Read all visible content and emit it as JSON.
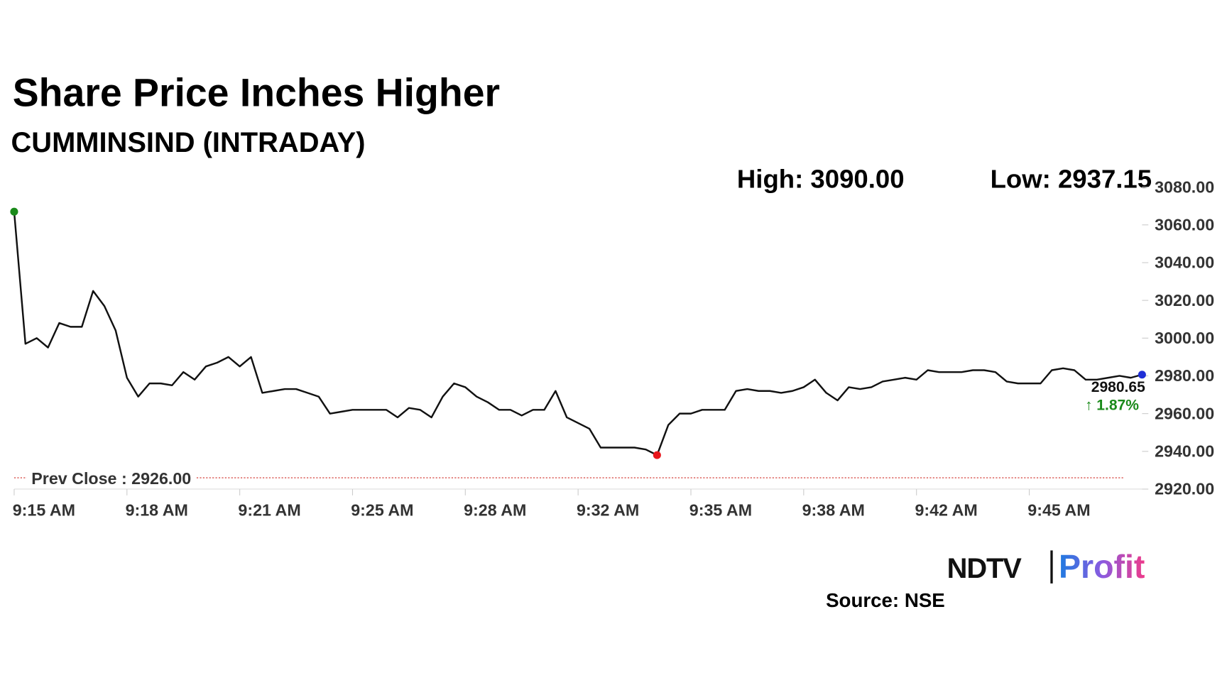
{
  "chart_data": {
    "type": "line",
    "title": "Share Price Inches Higher",
    "subtitle": "CUMMINSIND (INTRADAY)",
    "high_label": "High: 3090.00",
    "low_label": "Low: 2937.15",
    "change_label": "↑ 1.87%",
    "prev_close": 2926,
    "prev_close_label": "Prev Close : 2926.00",
    "source": "Source: NSE",
    "logo": {
      "left": "NDTV",
      "right": "Profit"
    },
    "color": "#111111",
    "prev_close_color": "#d9534f",
    "start_color": "#1a8a1a",
    "low_color": "#e8161b",
    "end_color": "#1f2fd6",
    "change_color": "#1a8a1a",
    "values": [
      3067,
      2997,
      3000,
      2995,
      3008,
      3006,
      3006,
      3025,
      3017,
      3004,
      2979,
      2969,
      2976,
      2976,
      2975,
      2982,
      2978,
      2985,
      2987,
      2990,
      2985,
      2990,
      2971,
      2972,
      2973,
      2973,
      2971,
      2969,
      2960,
      2961,
      2962,
      2962,
      2962,
      2962,
      2958,
      2963,
      2962,
      2958,
      2969,
      2976,
      2974,
      2969,
      2966,
      2962,
      2962,
      2959,
      2962,
      2962,
      2972,
      2958,
      2955,
      2952,
      2942,
      2942,
      2942,
      2942,
      2941,
      2938,
      2954,
      2960,
      2960,
      2962,
      2962,
      2962,
      2972,
      2973,
      2972,
      2972,
      2971,
      2972,
      2974,
      2978,
      2971,
      2967,
      2974,
      2973,
      2974,
      2977,
      2978,
      2979,
      2978,
      2983,
      2982,
      2982,
      2982,
      2983,
      2983,
      2982,
      2977,
      2976,
      2976,
      2976,
      2983,
      2984,
      2983,
      2978,
      2978,
      2979,
      2980,
      2979,
      2980.65
    ],
    "low_index": 57,
    "xlim": [
      0,
      100
    ],
    "xticks": [
      {
        "value": 0,
        "label": "9:15 AM"
      },
      {
        "value": 10,
        "label": "9:18 AM"
      },
      {
        "value": 20,
        "label": "9:21 AM"
      },
      {
        "value": 30,
        "label": "9:25 AM"
      },
      {
        "value": 40,
        "label": "9:28 AM"
      },
      {
        "value": 50,
        "label": "9:32 AM"
      },
      {
        "value": 60,
        "label": "9:35 AM"
      },
      {
        "value": 70,
        "label": "9:38 AM"
      },
      {
        "value": 80,
        "label": "9:42 AM"
      },
      {
        "value": 90,
        "label": "9:45 AM"
      }
    ],
    "ylim": [
      2920,
      3080
    ],
    "yticks": [
      {
        "value": 2920,
        "label": "2920.00"
      },
      {
        "value": 2940,
        "label": "2940.00"
      },
      {
        "value": 2960,
        "label": "2960.00"
      },
      {
        "value": 2980,
        "label": "2980.00"
      },
      {
        "value": 3000,
        "label": "3000.00"
      },
      {
        "value": 3020,
        "label": "3020.00"
      },
      {
        "value": 3040,
        "label": "3040.00"
      },
      {
        "value": 3060,
        "label": "3060.00"
      },
      {
        "value": 3080,
        "label": "3080.00"
      }
    ]
  }
}
